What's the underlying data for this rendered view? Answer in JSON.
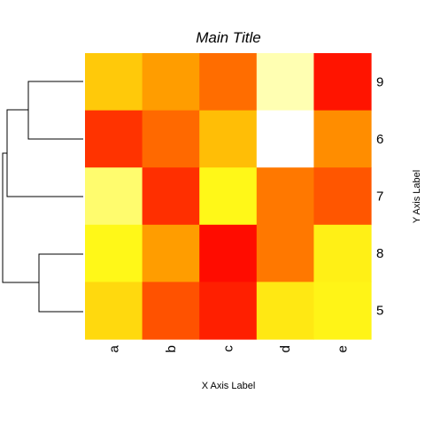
{
  "chart_data": {
    "type": "heatmap",
    "title": "Main Title",
    "xlabel": "X Axis Label",
    "ylabel": "Y Axis Label",
    "columns": [
      "a",
      "b",
      "c",
      "d",
      "e"
    ],
    "rows": [
      "9",
      "6",
      "7",
      "8",
      "5"
    ],
    "colorscale": "heat (red low to white high)",
    "values": [
      [
        0.58,
        0.45,
        0.28,
        0.88,
        0.05
      ],
      [
        0.13,
        0.27,
        0.55,
        1.0,
        0.39
      ],
      [
        0.8,
        0.12,
        0.7,
        0.31,
        0.22
      ],
      [
        0.7,
        0.45,
        0.03,
        0.31,
        0.68
      ],
      [
        0.62,
        0.21,
        0.08,
        0.66,
        0.69
      ]
    ],
    "row_dendrogram": "left",
    "legend": "none"
  }
}
